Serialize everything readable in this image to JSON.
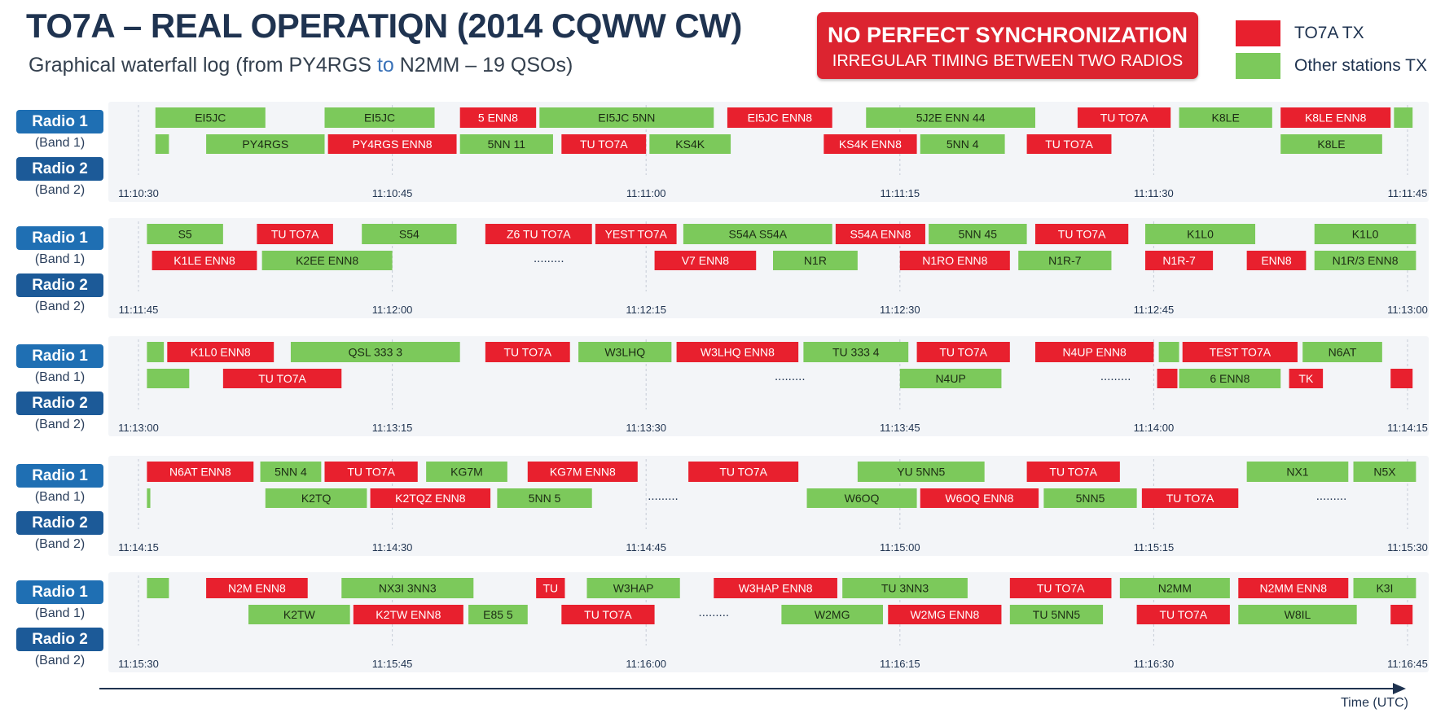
{
  "header": {
    "title": "TO7A – REAL OPERATIQN (2014 CQWW CW)",
    "subtitle_pre": "Graphical waterfall log (from PY4RGS ",
    "subtitle_to": "to",
    "subtitle_post": " N2MM – 19 QSOs)"
  },
  "warning": {
    "line1": "NO PERFECT SYNCHRONIZATION",
    "line2": "IRREGULAR TIMING BETWEEN TWO RADIOS"
  },
  "legend": {
    "to7a": "TO7A TX",
    "other": "Other stations TX"
  },
  "colors": {
    "to7a": "#e8202e",
    "other": "#7cc95b",
    "panel": "#f3f5f8",
    "label": "#1f6fb3"
  },
  "labels": {
    "radio1": "Radio 1",
    "band1": "(Band 1)",
    "radio2": "Radio 2",
    "band2": "(Band 2)"
  },
  "axis": {
    "label": "Time (UTC)"
  },
  "chart_data": {
    "type": "timeline",
    "series": [
      {
        "name": "TO7A TX",
        "key": "r"
      },
      {
        "name": "Other stations TX",
        "key": "g"
      }
    ],
    "rows": [
      {
        "t0": "11:10:30",
        "t1": "11:11:45",
        "ticks": [
          "11:10:30",
          "11:10:45",
          "11:11:00",
          "11:11:15",
          "11:11:30",
          "11:11:45"
        ],
        "radio1": [
          {
            "s": 1.0,
            "e": 7.5,
            "tx": "g",
            "label": "EI5JC"
          },
          {
            "s": 11.0,
            "e": 17.5,
            "tx": "g",
            "label": "EI5JC"
          },
          {
            "s": 19.0,
            "e": 23.5,
            "tx": "r",
            "label": "5 ENN8"
          },
          {
            "s": 23.7,
            "e": 34.0,
            "tx": "g",
            "label": "EI5JC 5NN"
          },
          {
            "s": 34.8,
            "e": 41.0,
            "tx": "r",
            "label": "EI5JC ENN8"
          },
          {
            "s": 43.0,
            "e": 53.0,
            "tx": "g",
            "label": "5J2E ENN 44"
          },
          {
            "s": 55.5,
            "e": 61.0,
            "tx": "r",
            "label": "TU TO7A"
          },
          {
            "s": 61.5,
            "e": 67.0,
            "tx": "g",
            "label": "K8LE"
          },
          {
            "s": 67.5,
            "e": 74.0,
            "tx": "r",
            "label": "K8LE ENN8"
          },
          {
            "s": 74.2,
            "e": 75.3,
            "tx": "g",
            "label": ""
          }
        ],
        "radio2": [
          {
            "s": 1.0,
            "e": 1.8,
            "tx": "g",
            "label": ""
          },
          {
            "s": 4.0,
            "e": 11.0,
            "tx": "g",
            "label": "PY4RGS"
          },
          {
            "s": 11.2,
            "e": 18.8,
            "tx": "r",
            "label": "PY4RGS ENN8"
          },
          {
            "s": 19.0,
            "e": 24.5,
            "tx": "g",
            "label": "5NN 11"
          },
          {
            "s": 25.0,
            "e": 30.0,
            "tx": "r",
            "label": "TU TO7A"
          },
          {
            "s": 30.2,
            "e": 35.0,
            "tx": "g",
            "label": "KS4K"
          },
          {
            "s": 40.5,
            "e": 46.0,
            "tx": "r",
            "label": "KS4K ENN8"
          },
          {
            "s": 46.2,
            "e": 51.2,
            "tx": "g",
            "label": "5NN 4"
          },
          {
            "s": 52.5,
            "e": 57.5,
            "tx": "r",
            "label": "TU TO7A"
          },
          {
            "s": 67.5,
            "e": 73.5,
            "tx": "g",
            "label": "K8LE"
          }
        ]
      },
      {
        "t0": "11:11:45",
        "t1": "11:13:00",
        "ticks": [
          "11:11:45",
          "11:12:00",
          "11:12:15",
          "11:12:30",
          "11:12:45",
          "11:13:00"
        ],
        "radio1": [
          {
            "s": 0.5,
            "e": 5.0,
            "tx": "g",
            "label": "S5"
          },
          {
            "s": 7.0,
            "e": 11.5,
            "tx": "r",
            "label": "TU TO7A"
          },
          {
            "s": 13.2,
            "e": 18.8,
            "tx": "g",
            "label": "S54"
          },
          {
            "s": 20.5,
            "e": 26.8,
            "tx": "r",
            "label": "Z6 TU TO7A"
          },
          {
            "s": 27.0,
            "e": 31.8,
            "tx": "r",
            "label": "YEST TO7A"
          },
          {
            "s": 32.2,
            "e": 41.0,
            "tx": "g",
            "label": "S54A S54A"
          },
          {
            "s": 41.2,
            "e": 46.5,
            "tx": "r",
            "label": "S54A ENN8"
          },
          {
            "s": 46.7,
            "e": 52.5,
            "tx": "g",
            "label": "5NN 45"
          },
          {
            "s": 53.0,
            "e": 58.5,
            "tx": "r",
            "label": "TU TO7A"
          },
          {
            "s": 59.5,
            "e": 66.0,
            "tx": "g",
            "label": "K1L0"
          },
          {
            "s": 69.5,
            "e": 75.5,
            "tx": "g",
            "label": "K1L0"
          }
        ],
        "radio2": [
          {
            "s": 0.8,
            "e": 7.0,
            "tx": "r",
            "label": "K1LE ENN8"
          },
          {
            "s": 7.3,
            "e": 15.0,
            "tx": "g",
            "label": "K2EE ENN8"
          },
          {
            "s": 20.5,
            "e": 28.0,
            "tx": "d",
            "label": "........."
          },
          {
            "s": 30.5,
            "e": 36.5,
            "tx": "r",
            "label": "V7 ENN8"
          },
          {
            "s": 37.5,
            "e": 42.5,
            "tx": "g",
            "label": "N1R"
          },
          {
            "s": 45.0,
            "e": 51.5,
            "tx": "r",
            "label": "N1RO ENN8"
          },
          {
            "s": 52.0,
            "e": 57.5,
            "tx": "g",
            "label": "N1R-7"
          },
          {
            "s": 59.5,
            "e": 63.5,
            "tx": "r",
            "label": "N1R-7"
          },
          {
            "s": 65.5,
            "e": 69.0,
            "tx": "r",
            "label": "ENN8"
          },
          {
            "s": 69.5,
            "e": 75.5,
            "tx": "g",
            "label": "N1R/3 ENN8"
          }
        ]
      },
      {
        "t0": "11:13:00",
        "t1": "11:14:15",
        "ticks": [
          "11:13:00",
          "11:13:15",
          "11:13:30",
          "11:13:45",
          "11:14:00",
          "11:14:15"
        ],
        "radio1": [
          {
            "s": 0.5,
            "e": 1.5,
            "tx": "g",
            "label": ""
          },
          {
            "s": 1.7,
            "e": 8.0,
            "tx": "r",
            "label": "K1L0 ENN8"
          },
          {
            "s": 9.0,
            "e": 19.0,
            "tx": "g",
            "label": "QSL 333 3"
          },
          {
            "s": 20.5,
            "e": 25.5,
            "tx": "r",
            "label": "TU TO7A"
          },
          {
            "s": 26.0,
            "e": 31.5,
            "tx": "g",
            "label": "W3LHQ"
          },
          {
            "s": 31.8,
            "e": 39.0,
            "tx": "r",
            "label": "W3LHQ ENN8"
          },
          {
            "s": 39.3,
            "e": 45.5,
            "tx": "g",
            "label": "TU 333 4"
          },
          {
            "s": 46.0,
            "e": 51.5,
            "tx": "r",
            "label": "TU TO7A"
          },
          {
            "s": 53.0,
            "e": 60.0,
            "tx": "r",
            "label": "N4UP ENN8"
          },
          {
            "s": 60.3,
            "e": 61.5,
            "tx": "g",
            "label": ""
          },
          {
            "s": 61.7,
            "e": 68.5,
            "tx": "r",
            "label": "TEST TO7A"
          },
          {
            "s": 68.8,
            "e": 73.5,
            "tx": "g",
            "label": "N6AT"
          }
        ],
        "radio2": [
          {
            "s": 0.5,
            "e": 3.0,
            "tx": "g",
            "label": ""
          },
          {
            "s": 5.0,
            "e": 12.0,
            "tx": "r",
            "label": "TU TO7A"
          },
          {
            "s": 35.5,
            "e": 41.5,
            "tx": "d",
            "label": "........."
          },
          {
            "s": 45.0,
            "e": 51.0,
            "tx": "g",
            "label": "N4UP"
          },
          {
            "s": 55.5,
            "e": 60.0,
            "tx": "d",
            "label": "........."
          },
          {
            "s": 60.2,
            "e": 61.4,
            "tx": "r",
            "label": ""
          },
          {
            "s": 61.5,
            "e": 67.5,
            "tx": "g",
            "label": "6 ENN8"
          },
          {
            "s": 68.0,
            "e": 70.0,
            "tx": "r",
            "label": "TK"
          },
          {
            "s": 74.0,
            "e": 75.3,
            "tx": "r",
            "label": ""
          }
        ]
      },
      {
        "t0": "11:14:15",
        "t1": "11:15:30",
        "ticks": [
          "11:14:15",
          "11:14:30",
          "11:14:45",
          "11:15:00",
          "11:15:15",
          "11:15:30"
        ],
        "radio1": [
          {
            "s": 0.5,
            "e": 6.8,
            "tx": "r",
            "label": "N6AT ENN8"
          },
          {
            "s": 7.2,
            "e": 10.8,
            "tx": "g",
            "label": "5NN 4"
          },
          {
            "s": 11.0,
            "e": 16.5,
            "tx": "r",
            "label": "TU TO7A"
          },
          {
            "s": 17.0,
            "e": 21.8,
            "tx": "g",
            "label": "KG7M"
          },
          {
            "s": 23.0,
            "e": 29.5,
            "tx": "r",
            "label": "KG7M ENN8"
          },
          {
            "s": 32.5,
            "e": 39.0,
            "tx": "r",
            "label": "TU TO7A"
          },
          {
            "s": 42.5,
            "e": 50.0,
            "tx": "g",
            "label": "YU 5NN5"
          },
          {
            "s": 52.5,
            "e": 58.0,
            "tx": "r",
            "label": "TU TO7A"
          },
          {
            "s": 65.5,
            "e": 71.5,
            "tx": "g",
            "label": "NX1"
          },
          {
            "s": 71.8,
            "e": 75.5,
            "tx": "g",
            "label": "N5X"
          }
        ],
        "radio2": [
          {
            "s": 0.5,
            "e": 0.7,
            "tx": "g",
            "label": ""
          },
          {
            "s": 7.5,
            "e": 13.5,
            "tx": "g",
            "label": "K2TQ"
          },
          {
            "s": 13.7,
            "e": 20.8,
            "tx": "r",
            "label": "K2TQZ ENN8"
          },
          {
            "s": 21.2,
            "e": 26.8,
            "tx": "g",
            "label": "5NN 5"
          },
          {
            "s": 29.0,
            "e": 33.0,
            "tx": "d",
            "label": "........."
          },
          {
            "s": 39.5,
            "e": 46.0,
            "tx": "g",
            "label": "W6OQ"
          },
          {
            "s": 46.2,
            "e": 53.2,
            "tx": "r",
            "label": "W6OQ ENN8"
          },
          {
            "s": 53.5,
            "e": 59.0,
            "tx": "g",
            "label": "5NN5"
          },
          {
            "s": 59.3,
            "e": 65.0,
            "tx": "r",
            "label": "TU TO7A"
          },
          {
            "s": 68.5,
            "e": 72.5,
            "tx": "d",
            "label": "........."
          }
        ]
      },
      {
        "t0": "11:15:30",
        "t1": "11:16:45",
        "ticks": [
          "11:15:30",
          "11:15:45",
          "11:16:00",
          "11:16:15",
          "11:16:30",
          "11:16:45"
        ],
        "radio1": [
          {
            "s": 0.5,
            "e": 1.8,
            "tx": "g",
            "label": ""
          },
          {
            "s": 4.0,
            "e": 10.0,
            "tx": "r",
            "label": "N2M ENN8"
          },
          {
            "s": 12.0,
            "e": 19.8,
            "tx": "g",
            "label": "NX3I 3NN3"
          },
          {
            "s": 23.5,
            "e": 25.2,
            "tx": "r",
            "label": "TU"
          },
          {
            "s": 26.5,
            "e": 32.0,
            "tx": "g",
            "label": "W3HAP"
          },
          {
            "s": 34.0,
            "e": 41.3,
            "tx": "r",
            "label": "W3HAP ENN8"
          },
          {
            "s": 41.6,
            "e": 49.0,
            "tx": "g",
            "label": "TU 3NN3"
          },
          {
            "s": 51.5,
            "e": 57.5,
            "tx": "r",
            "label": "TU TO7A"
          },
          {
            "s": 58.0,
            "e": 64.5,
            "tx": "g",
            "label": "N2MM"
          },
          {
            "s": 65.0,
            "e": 71.5,
            "tx": "r",
            "label": "N2MM ENN8"
          },
          {
            "s": 71.8,
            "e": 75.5,
            "tx": "g",
            "label": "K3I"
          }
        ],
        "radio2": [
          {
            "s": 6.5,
            "e": 12.5,
            "tx": "g",
            "label": "K2TW"
          },
          {
            "s": 12.7,
            "e": 19.2,
            "tx": "r",
            "label": "K2TW ENN8"
          },
          {
            "s": 19.5,
            "e": 23.0,
            "tx": "g",
            "label": "E85 5"
          },
          {
            "s": 25.0,
            "e": 30.5,
            "tx": "r",
            "label": "TU TO7A"
          },
          {
            "s": 32.0,
            "e": 36.0,
            "tx": "d",
            "label": "........."
          },
          {
            "s": 38.0,
            "e": 44.0,
            "tx": "g",
            "label": "W2MG"
          },
          {
            "s": 44.3,
            "e": 51.0,
            "tx": "r",
            "label": "W2MG ENN8"
          },
          {
            "s": 51.5,
            "e": 57.0,
            "tx": "g",
            "label": "TU 5NN5"
          },
          {
            "s": 59.0,
            "e": 64.5,
            "tx": "r",
            "label": "TU TO7A"
          },
          {
            "s": 65.0,
            "e": 72.0,
            "tx": "g",
            "label": "W8IL"
          },
          {
            "s": 74.0,
            "e": 75.3,
            "tx": "r",
            "label": ""
          }
        ]
      }
    ]
  }
}
